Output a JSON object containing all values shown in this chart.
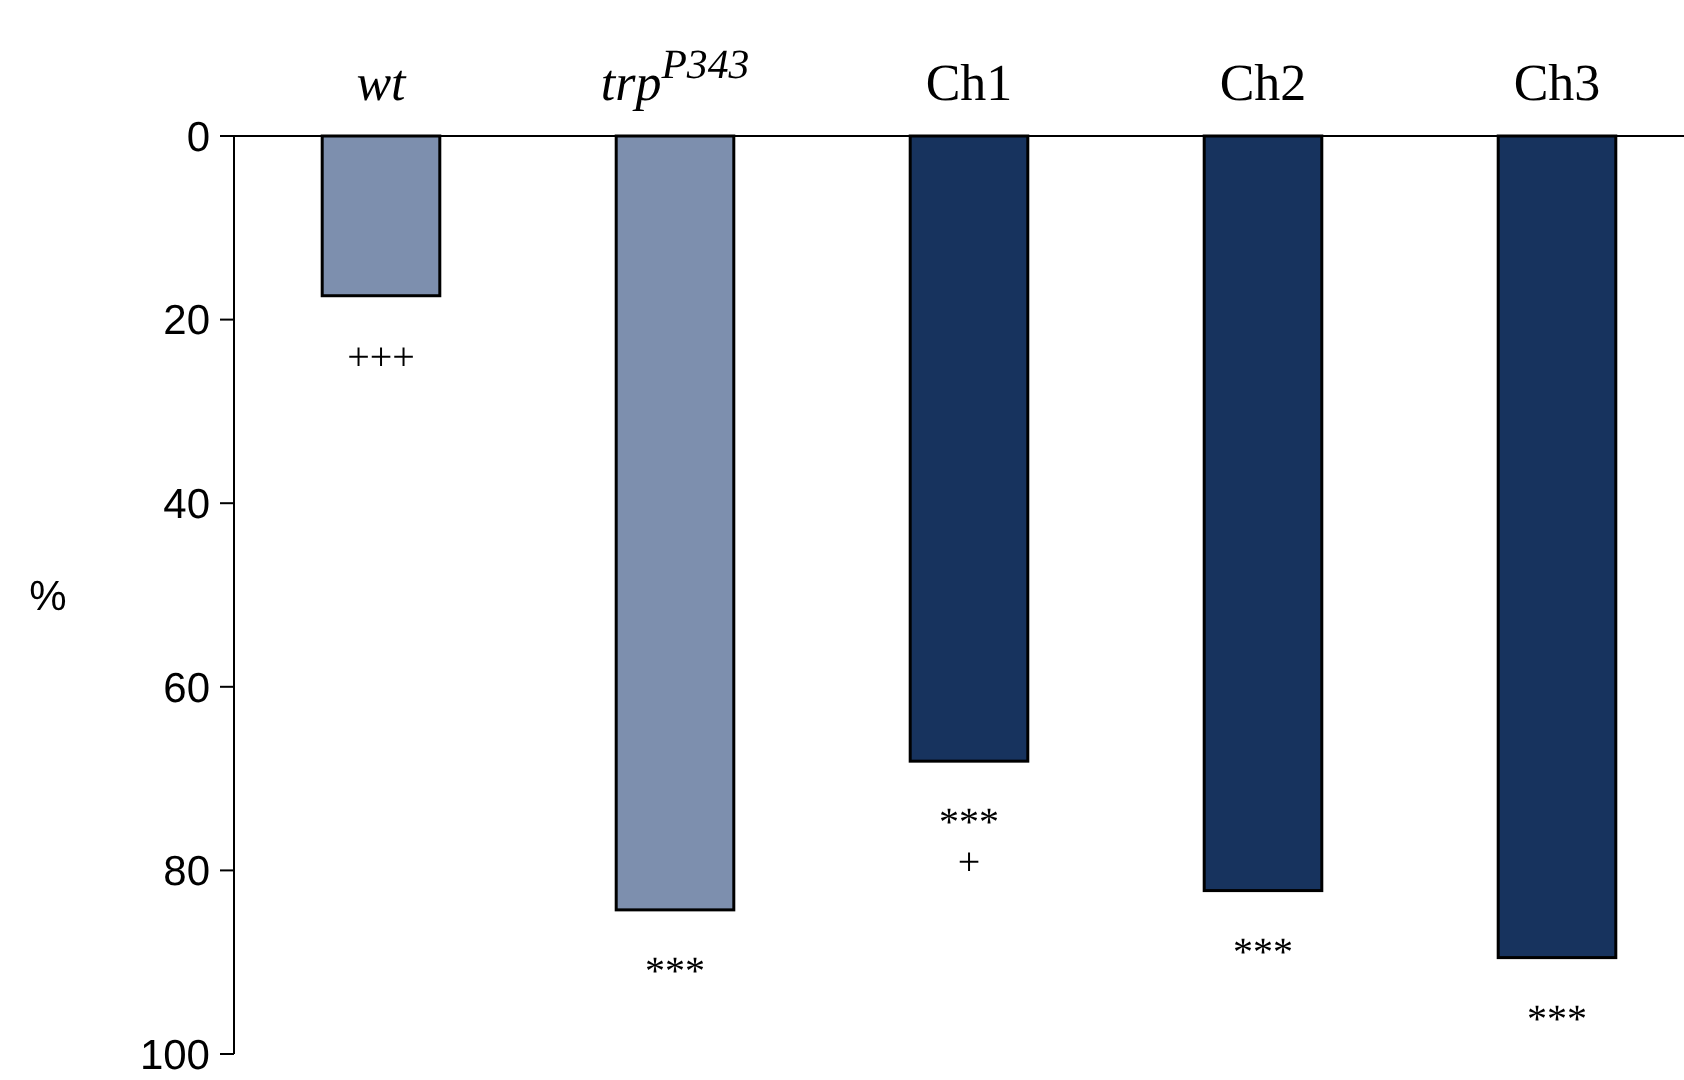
{
  "chart_data": {
    "type": "bar",
    "ylabel": "%",
    "categories": [
      "wt",
      "trp$^{P343}$",
      "Ch1",
      "Ch2",
      "Ch3"
    ],
    "values": [
      17.4,
      84.3,
      68.1,
      82.2,
      89.5
    ],
    "colors": [
      "#7d8fae",
      "#7d8fae",
      "#17335e",
      "#17335e",
      "#17335e"
    ],
    "ylim": [
      100,
      0
    ],
    "yticks": [
      0,
      20,
      40,
      60,
      80,
      100
    ],
    "grid": false,
    "annotations": [
      {
        "text": "+++",
        "x": "wt",
        "y": 17.4
      },
      {
        "text": "***",
        "x": "trp$^{P343}$",
        "y": 84.3
      },
      {
        "text": "***",
        "x": "Ch1",
        "y": 68.1
      },
      {
        "text": "+",
        "x": "Ch1",
        "y": 68.1
      },
      {
        "text": "***",
        "x": "Ch2",
        "y": 82.2
      },
      {
        "text": "***",
        "x": "Ch3",
        "y": 89.5
      }
    ]
  }
}
